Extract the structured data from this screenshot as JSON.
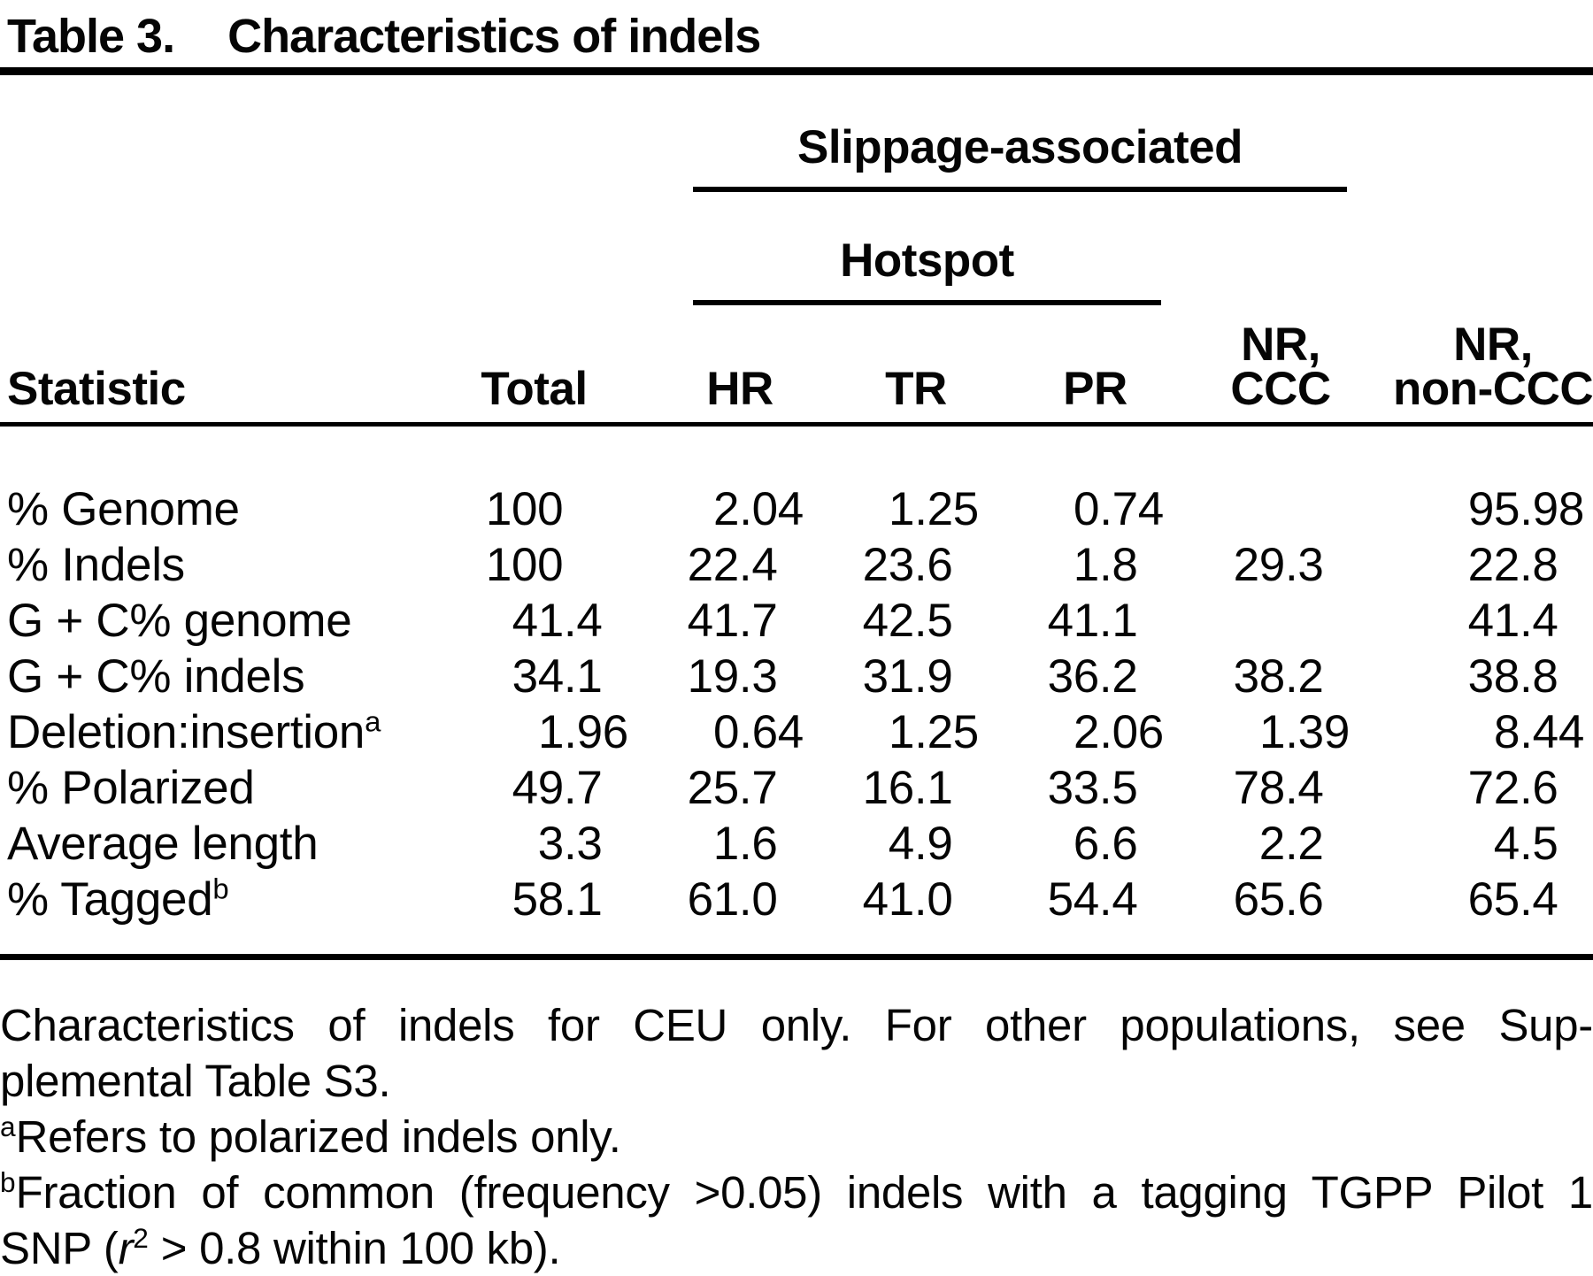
{
  "title": {
    "label": "Table 3.",
    "caption": "Characteristics of indels"
  },
  "table": {
    "group_headers": {
      "slippage": "Slippage-associated",
      "hotspot": "Hotspot"
    },
    "columns": [
      {
        "label": "Statistic"
      },
      {
        "label": "Total"
      },
      {
        "label": "HR"
      },
      {
        "label": "TR"
      },
      {
        "label": "PR"
      },
      {
        "line1": "NR,",
        "line2": "CCC"
      },
      {
        "line1": "NR,",
        "line2": "non-CCC"
      }
    ],
    "rows": [
      {
        "label": "% Genome",
        "sup": "",
        "values": [
          "100",
          "2.04",
          "1.25",
          "0.74",
          "",
          "95.98"
        ]
      },
      {
        "label": "% Indels",
        "sup": "",
        "values": [
          "100",
          "22.4",
          "23.6",
          "1.8",
          "29.3",
          "22.8"
        ]
      },
      {
        "label": "G + C% genome",
        "sup": "",
        "values": [
          "41.4",
          "41.7",
          "42.5",
          "41.1",
          "",
          "41.4"
        ]
      },
      {
        "label": "G + C% indels",
        "sup": "",
        "values": [
          "34.1",
          "19.3",
          "31.9",
          "36.2",
          "38.2",
          "38.8"
        ]
      },
      {
        "label": "Deletion:insertion",
        "sup": "a",
        "values": [
          "1.96",
          "0.64",
          "1.25",
          "2.06",
          "1.39",
          "8.44"
        ]
      },
      {
        "label": "% Polarized",
        "sup": "",
        "values": [
          "49.7",
          "25.7",
          "16.1",
          "33.5",
          "78.4",
          "72.6"
        ]
      },
      {
        "label": "Average length",
        "sup": "",
        "values": [
          "3.3",
          "1.6",
          "4.9",
          "6.6",
          "2.2",
          "4.5"
        ]
      },
      {
        "label": "% Tagged",
        "sup": "b",
        "values": [
          "58.1",
          "61.0",
          "41.0",
          "54.4",
          "65.6",
          "65.4"
        ]
      }
    ]
  },
  "footnotes": {
    "general_lines": [
      "Characteristics of indels for CEU only. For other populations, see Sup-",
      "plemental Table S3."
    ],
    "a": {
      "marker": "a",
      "text": "Refers to polarized indels only."
    },
    "b": {
      "marker": "b",
      "line1": "Fraction of common (frequency >0.05) indels with a tagging TGPP Pilot 1",
      "line2_prefix": "SNP (",
      "variable": "r",
      "exponent": "2",
      "line2_suffix": " > 0.8 within 100 kb)."
    }
  }
}
